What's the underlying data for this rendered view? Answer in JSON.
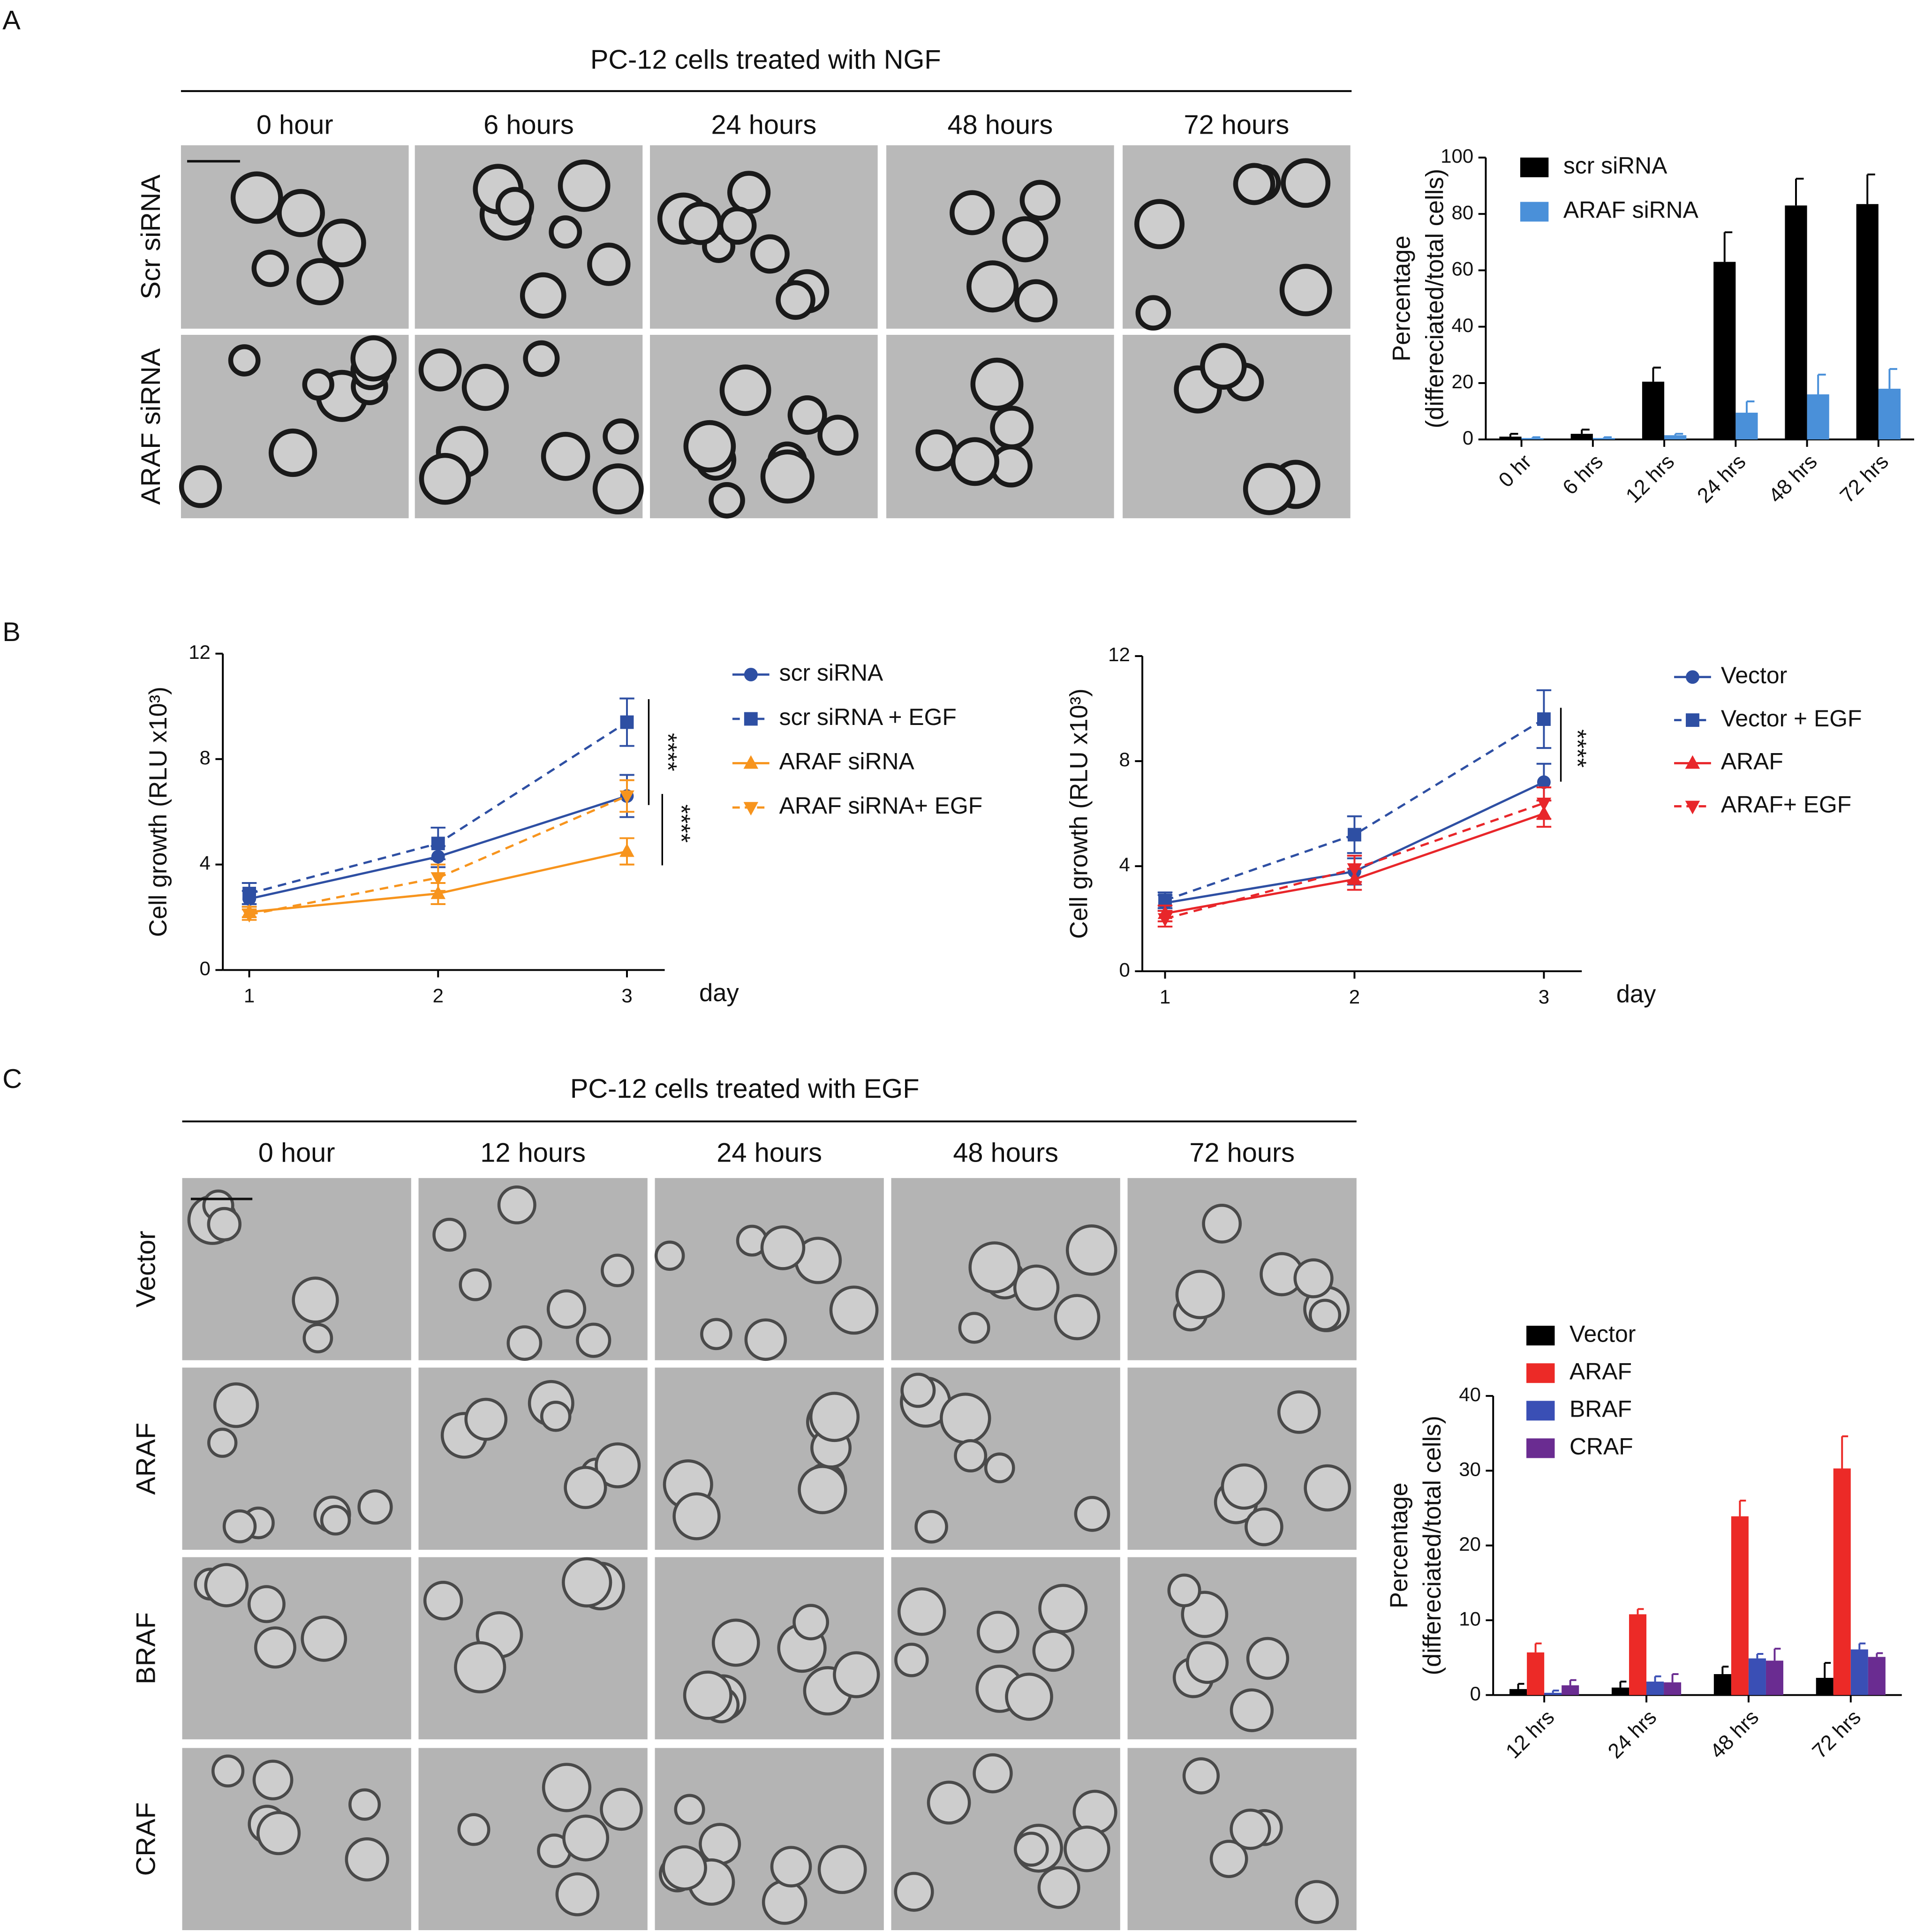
{
  "panels": {
    "A": {
      "label": "A",
      "title": "PC-12 cells treated with NGF",
      "columns": [
        "0 hour",
        "6 hours",
        "24 hours",
        "48 hours",
        "72 hours"
      ],
      "rows": [
        "Scr siRNA",
        "ARAF siRNA"
      ]
    },
    "B": {
      "label": "B"
    },
    "C": {
      "label": "C",
      "title": "PC-12 cells treated with EGF",
      "columns": [
        "0 hour",
        "12 hours",
        "24 hours",
        "48 hours",
        "72 hours"
      ],
      "rows": [
        "Vector",
        "ARAF",
        "BRAF",
        "CRAF"
      ]
    }
  },
  "chart_data": [
    {
      "type": "bar",
      "ylabel": [
        "Percentage",
        "(differeciated/total cells)"
      ],
      "categories": [
        "0 hr",
        "6 hrs",
        "12 hrs",
        "24 hrs",
        "48 hrs",
        "72 hrs"
      ],
      "series": [
        {
          "name": "scr siRNA",
          "color": "#000000",
          "values": [
            1,
            2,
            20.5,
            63,
            83,
            83.5
          ],
          "errors": [
            1,
            1.5,
            5,
            10.5,
            9.5,
            10.5
          ]
        },
        {
          "name": "ARAF siRNA",
          "color": "#4a90d9",
          "values": [
            0.5,
            0.5,
            1.5,
            9.5,
            16,
            18
          ],
          "errors": [
            0.3,
            0.3,
            0.5,
            4,
            7,
            7
          ]
        }
      ],
      "ylim": [
        0,
        100
      ],
      "yticks": [
        0,
        20,
        40,
        60,
        80,
        100
      ]
    },
    {
      "type": "line",
      "ylabel": "Cell growth (RLU x10³)",
      "xlabel": "day",
      "x": [
        1,
        2,
        3
      ],
      "series": [
        {
          "name": "scr siRNA",
          "color": "#2e4fa3",
          "dash": false,
          "marker": "circle",
          "values": [
            2.7,
            4.3,
            6.6
          ],
          "errors": [
            0.3,
            0.4,
            0.8
          ]
        },
        {
          "name": "scr siRNA + EGF",
          "color": "#2e4fa3",
          "dash": true,
          "marker": "square",
          "values": [
            2.9,
            4.8,
            9.4
          ],
          "errors": [
            0.4,
            0.6,
            0.9
          ]
        },
        {
          "name": "ARAF siRNA",
          "color": "#f7941d",
          "dash": false,
          "marker": "triangle-up",
          "values": [
            2.2,
            2.9,
            4.5
          ],
          "errors": [
            0.2,
            0.4,
            0.5
          ]
        },
        {
          "name": "ARAF siRNA+ EGF",
          "color": "#f7941d",
          "dash": true,
          "marker": "triangle-down",
          "values": [
            2.1,
            3.5,
            6.6
          ],
          "errors": [
            0.2,
            0.5,
            0.6
          ]
        }
      ],
      "xlim": [
        0.86,
        3.2
      ],
      "xticks": [
        1,
        2,
        3
      ],
      "ylim": [
        0,
        12
      ],
      "yticks": [
        0,
        4,
        8,
        12
      ],
      "annotations": [
        "****",
        "****"
      ]
    },
    {
      "type": "line",
      "ylabel": "Cell growth (RLU x10³)",
      "xlabel": "day",
      "x": [
        1,
        2,
        3
      ],
      "series": [
        {
          "name": "Vector",
          "color": "#2e4fa3",
          "dash": false,
          "marker": "circle",
          "values": [
            2.6,
            3.8,
            7.2
          ],
          "errors": [
            0.3,
            0.5,
            0.7
          ]
        },
        {
          "name": "Vector + EGF",
          "color": "#2e4fa3",
          "dash": true,
          "marker": "square",
          "values": [
            2.7,
            5.2,
            9.6
          ],
          "errors": [
            0.3,
            0.7,
            1.1
          ]
        },
        {
          "name": "ARAF",
          "color": "#e8262a",
          "dash": false,
          "marker": "triangle-up",
          "values": [
            2.2,
            3.5,
            6.0
          ],
          "errors": [
            0.3,
            0.4,
            0.5
          ]
        },
        {
          "name": "ARAF+ EGF",
          "color": "#e8262a",
          "dash": true,
          "marker": "triangle-down",
          "values": [
            2.0,
            3.9,
            6.4
          ],
          "errors": [
            0.3,
            0.5,
            0.6
          ]
        }
      ],
      "xlim": [
        0.88,
        3.2
      ],
      "xticks": [
        1,
        2,
        3
      ],
      "ylim": [
        0,
        12
      ],
      "yticks": [
        0,
        4,
        8,
        12
      ],
      "annotations": [
        "****"
      ]
    },
    {
      "type": "bar",
      "ylabel": [
        "Percentage",
        "(differeciated/total cells)"
      ],
      "categories": [
        "12 hrs",
        "24 hrs",
        "48 hrs",
        "72 hrs"
      ],
      "series": [
        {
          "name": "Vector",
          "color": "#000000",
          "values": [
            0.8,
            1.0,
            2.8,
            2.3
          ],
          "errors": [
            0.7,
            0.8,
            1.0,
            2.0
          ]
        },
        {
          "name": "ARAF",
          "color": "#ec2a27",
          "values": [
            5.7,
            10.8,
            23.9,
            30.3
          ],
          "errors": [
            1.2,
            0.7,
            2.1,
            4.3
          ]
        },
        {
          "name": "BRAF",
          "color": "#3a4fb5",
          "values": [
            0.3,
            1.8,
            4.9,
            6.1
          ],
          "errors": [
            0.3,
            0.7,
            0.6,
            0.8
          ]
        },
        {
          "name": "CRAF",
          "color": "#6a2c91",
          "values": [
            1.3,
            1.7,
            4.6,
            5.1
          ],
          "errors": [
            0.7,
            1.1,
            1.6,
            0.5
          ]
        }
      ],
      "ylim": [
        0,
        40
      ],
      "yticks": [
        0,
        10,
        20,
        30,
        40
      ]
    }
  ]
}
